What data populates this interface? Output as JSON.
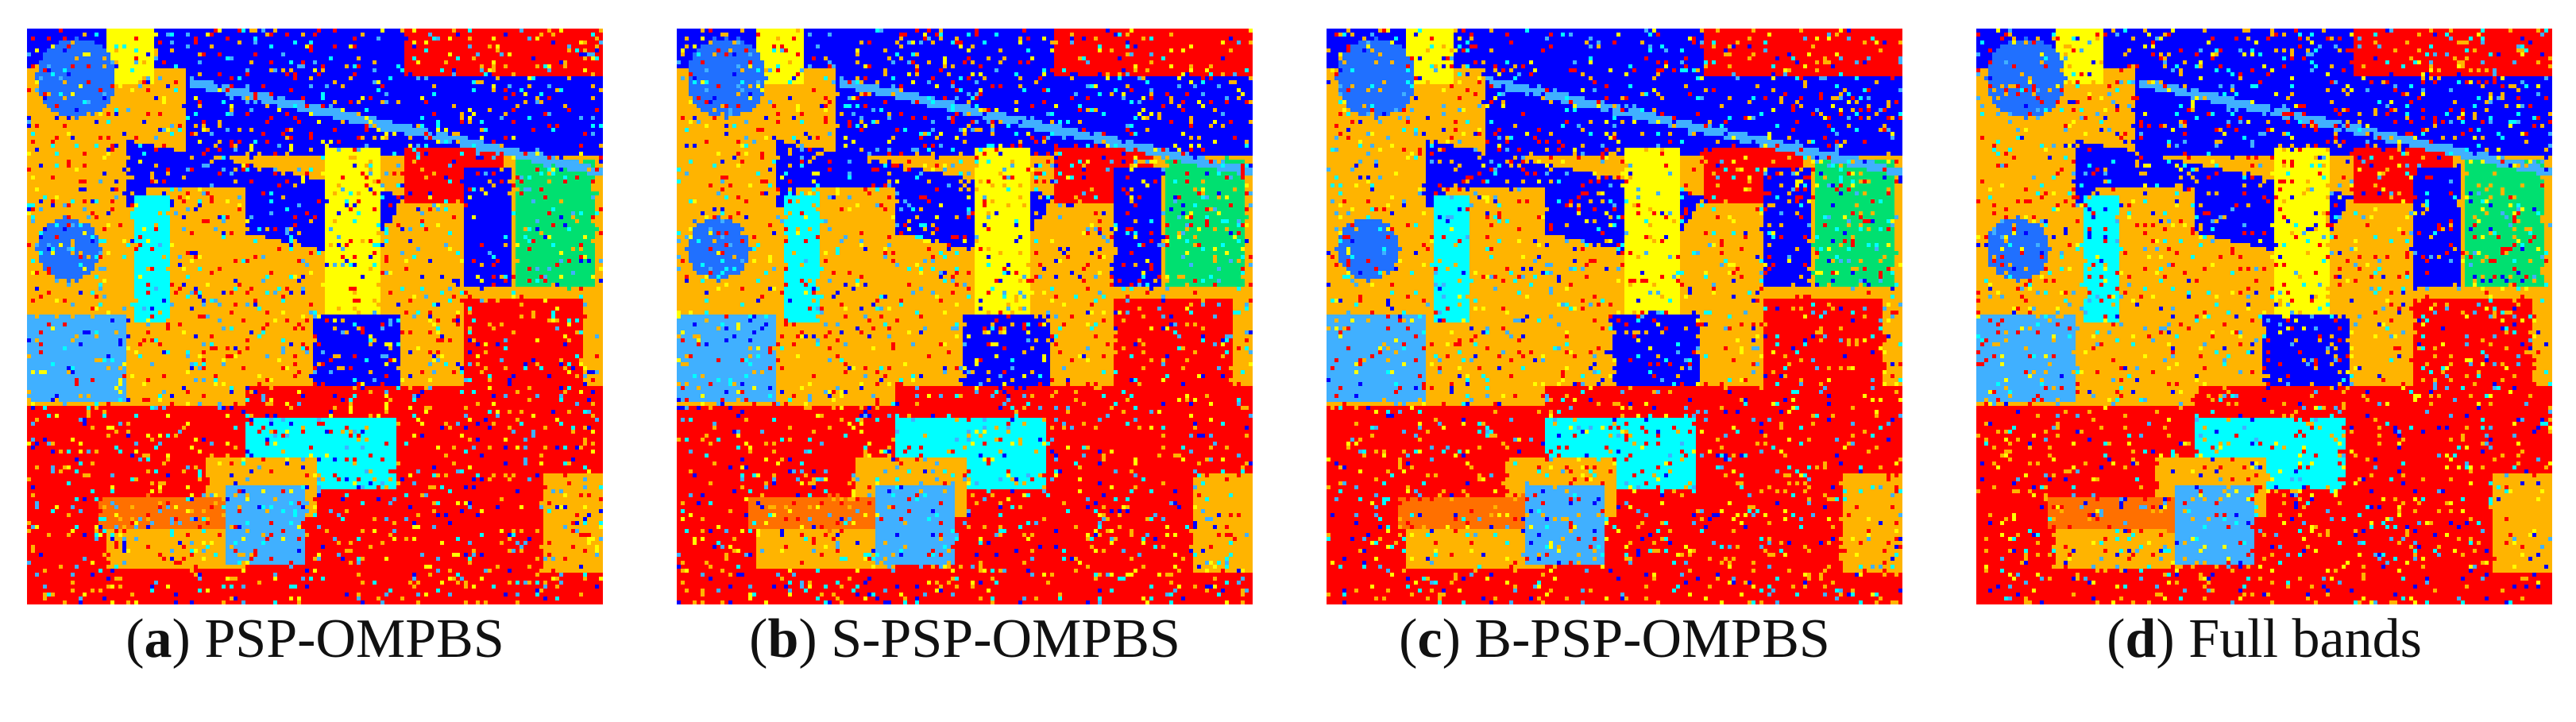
{
  "palette": {
    "red": "#ff0000",
    "orange": "#ffb400",
    "yellow": "#ffff00",
    "blue": "#0000ff",
    "cyan": "#00ffff",
    "green": "#00e070",
    "mid_blue": "#2070ff",
    "sky": "#40b0ff",
    "dark_orange": "#ff7000"
  },
  "panels": [
    {
      "letter": "a",
      "label": "PSP-OMPBS",
      "seed": 11
    },
    {
      "letter": "b",
      "label": "S-PSP-OMPBS",
      "seed": 23
    },
    {
      "letter": "c",
      "label": "B-PSP-OMPBS",
      "seed": 37
    },
    {
      "letter": "d",
      "label": "Full bands",
      "seed": 53
    }
  ]
}
